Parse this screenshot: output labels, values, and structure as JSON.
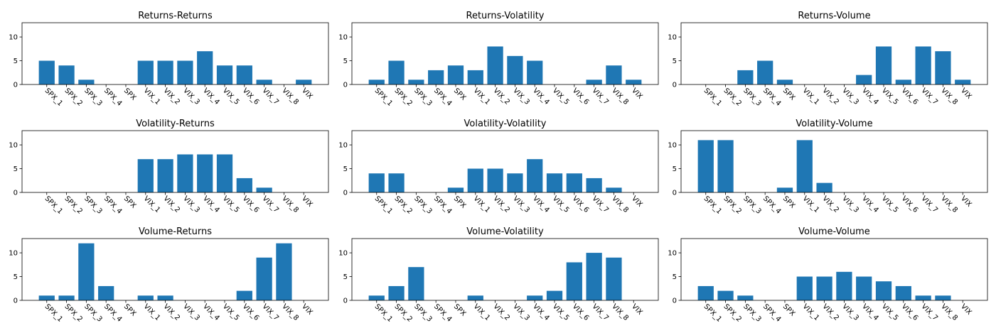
{
  "style": {
    "bar_color": "#1f77b4",
    "axis_color": "#000000",
    "background": "#ffffff"
  },
  "chart_data": [
    {
      "type": "bar",
      "title": "Returns-Returns",
      "categories": [
        "SPX_1",
        "SPX_2",
        "SPX_3",
        "SPX_4",
        "SPX",
        "VIX_1",
        "VIX_2",
        "VIX_3",
        "VIX_4",
        "VIX_5",
        "VIX_6",
        "VIX_7",
        "VIX_8",
        "VIX"
      ],
      "values": [
        5,
        4,
        1,
        0,
        0,
        5,
        5,
        5,
        7,
        4,
        4,
        1,
        0,
        1
      ],
      "ylim": [
        0,
        13
      ],
      "yticks": [
        "0",
        "5",
        "10"
      ],
      "grid": false
    },
    {
      "type": "bar",
      "title": "Returns-Volatility",
      "categories": [
        "SPX_1",
        "SPX_2",
        "SPX_3",
        "SPX_4",
        "SPX",
        "VIX_1",
        "VIX_2",
        "VIX_3",
        "VIX_4",
        "VIX_5",
        "VIX_6",
        "VIX_7",
        "VIX_8",
        "VIX"
      ],
      "values": [
        1,
        5,
        1,
        3,
        4,
        3,
        8,
        6,
        5,
        0,
        0,
        1,
        4,
        1
      ],
      "ylim": [
        0,
        13
      ],
      "yticks": [
        "0",
        "5",
        "10"
      ],
      "grid": false
    },
    {
      "type": "bar",
      "title": "Returns-Volume",
      "categories": [
        "SPX_1",
        "SPX_2",
        "SPX_3",
        "SPX_4",
        "SPX",
        "VIX_1",
        "VIX_2",
        "VIX_3",
        "VIX_4",
        "VIX_5",
        "VIX_6",
        "VIX_7",
        "VIX_8",
        "VIX"
      ],
      "values": [
        0,
        0,
        3,
        5,
        1,
        0,
        0,
        0,
        2,
        8,
        1,
        8,
        7,
        1
      ],
      "ylim": [
        0,
        13
      ],
      "yticks": [
        "0",
        "5",
        "10"
      ],
      "grid": false
    },
    {
      "type": "bar",
      "title": "Volatility-Returns",
      "categories": [
        "SPX_1",
        "SPX_2",
        "SPX_3",
        "SPX_4",
        "SPX",
        "VIX_1",
        "VIX_2",
        "VIX_3",
        "VIX_4",
        "VIX_5",
        "VIX_6",
        "VIX_7",
        "VIX_8",
        "VIX"
      ],
      "values": [
        0,
        0,
        0,
        0,
        0,
        7,
        7,
        8,
        8,
        8,
        3,
        1,
        0,
        0
      ],
      "ylim": [
        0,
        13
      ],
      "yticks": [
        "0",
        "5",
        "10"
      ],
      "grid": false
    },
    {
      "type": "bar",
      "title": "Volatility-Volatility",
      "categories": [
        "SPX_1",
        "SPX_2",
        "SPX_3",
        "SPX_4",
        "SPX",
        "VIX_1",
        "VIX_2",
        "VIX_3",
        "VIX_4",
        "VIX_5",
        "VIX_6",
        "VIX_7",
        "VIX_8",
        "VIX"
      ],
      "values": [
        4,
        4,
        0,
        0,
        1,
        5,
        5,
        4,
        7,
        4,
        4,
        3,
        1,
        0
      ],
      "ylim": [
        0,
        13
      ],
      "yticks": [
        "0",
        "5",
        "10"
      ],
      "grid": false
    },
    {
      "type": "bar",
      "title": "Volatility-Volume",
      "categories": [
        "SPX_1",
        "SPX_2",
        "SPX_3",
        "SPX_4",
        "SPX",
        "VIX_1",
        "VIX_2",
        "VIX_3",
        "VIX_4",
        "VIX_5",
        "VIX_6",
        "VIX_7",
        "VIX_8",
        "VIX"
      ],
      "values": [
        11,
        11,
        0,
        0,
        1,
        11,
        2,
        0,
        0,
        0,
        0,
        0,
        0,
        0
      ],
      "ylim": [
        0,
        13
      ],
      "yticks": [
        "0",
        "5",
        "10"
      ],
      "grid": false
    },
    {
      "type": "bar",
      "title": "Volume-Returns",
      "categories": [
        "SPX_1",
        "SPX_2",
        "SPX_3",
        "SPX_4",
        "SPX",
        "VIX_1",
        "VIX_2",
        "VIX_3",
        "VIX_4",
        "VIX_5",
        "VIX_6",
        "VIX_7",
        "VIX_8",
        "VIX"
      ],
      "values": [
        1,
        1,
        12,
        3,
        0,
        1,
        1,
        0,
        0,
        0,
        2,
        9,
        12,
        0
      ],
      "ylim": [
        0,
        13
      ],
      "yticks": [
        "0",
        "5",
        "10"
      ],
      "grid": false
    },
    {
      "type": "bar",
      "title": "Volume-Volatility",
      "categories": [
        "SPX_1",
        "SPX_2",
        "SPX_3",
        "SPX_4",
        "SPX",
        "VIX_1",
        "VIX_2",
        "VIX_3",
        "VIX_4",
        "VIX_5",
        "VIX_6",
        "VIX_7",
        "VIX_8",
        "VIX"
      ],
      "values": [
        1,
        3,
        7,
        0,
        0,
        1,
        0,
        0,
        1,
        2,
        8,
        10,
        9,
        0
      ],
      "ylim": [
        0,
        13
      ],
      "yticks": [
        "0",
        "5",
        "10"
      ],
      "grid": false
    },
    {
      "type": "bar",
      "title": "Volume-Volume",
      "categories": [
        "SPX_1",
        "SPX_2",
        "SPX_3",
        "SPX_4",
        "SPX",
        "VIX_1",
        "VIX_2",
        "VIX_3",
        "VIX_4",
        "VIX_5",
        "VIX_6",
        "VIX_7",
        "VIX_8",
        "VIX"
      ],
      "values": [
        3,
        2,
        1,
        0,
        0,
        5,
        5,
        6,
        5,
        4,
        3,
        1,
        1,
        0
      ],
      "ylim": [
        0,
        13
      ],
      "yticks": [
        "0",
        "5",
        "10"
      ],
      "grid": false
    }
  ]
}
